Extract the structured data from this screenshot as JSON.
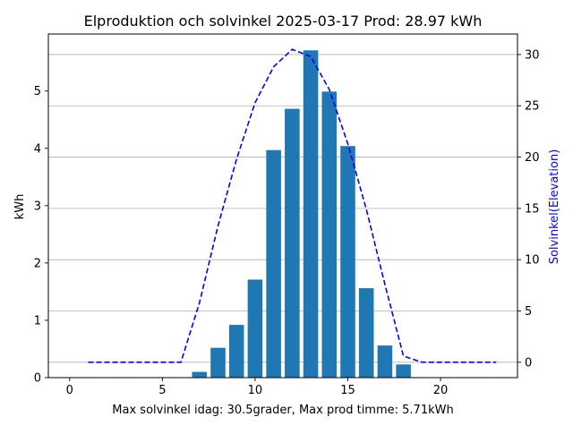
{
  "chart_data": {
    "type": "bar",
    "title": "Elproduktion och solvinkel 2025-03-17 Prod: 28.97 kWh",
    "xlabel": "Max solvinkel idag: 30.5grader, Max prod timme: 5.71kWh",
    "ylabel": "kWh",
    "y2label": "Solvinkel(Elevation)",
    "xlim": [
      -1.15,
      24.15
    ],
    "ylim": [
      0,
      5.995
    ],
    "y2lim": [
      -1.5,
      32.0
    ],
    "x_ticks": [
      0,
      5,
      10,
      15,
      20
    ],
    "y_ticks": [
      0,
      1,
      2,
      3,
      4,
      5
    ],
    "y2_ticks": [
      0,
      5,
      10,
      15,
      20,
      25,
      30
    ],
    "grid": "horizontal lines at right-axis ticks",
    "colors": {
      "bar": "#1f77b4",
      "elevation_line": "#0000ff",
      "y2label": "#0000ff"
    },
    "bars": {
      "x": [
        7,
        8,
        9,
        10,
        11,
        12,
        13,
        14,
        15,
        16,
        17,
        18
      ],
      "values": [
        0.1,
        0.52,
        0.92,
        1.71,
        3.97,
        4.69,
        5.71,
        4.99,
        4.04,
        1.56,
        0.56,
        0.23
      ]
    },
    "series": [
      {
        "axis": "right",
        "style": "dashed",
        "x": [
          1,
          2,
          3,
          4,
          5,
          6,
          7,
          8,
          9,
          10,
          11,
          12,
          13,
          14,
          15,
          16,
          17,
          18,
          19,
          20,
          21,
          22,
          23
        ],
        "values": [
          0,
          0,
          0,
          0,
          0,
          0,
          5.8,
          13.3,
          19.8,
          25.3,
          28.8,
          30.5,
          29.8,
          26.6,
          21.3,
          14.9,
          7.6,
          0.6,
          0,
          0,
          0,
          0,
          0
        ]
      }
    ]
  }
}
